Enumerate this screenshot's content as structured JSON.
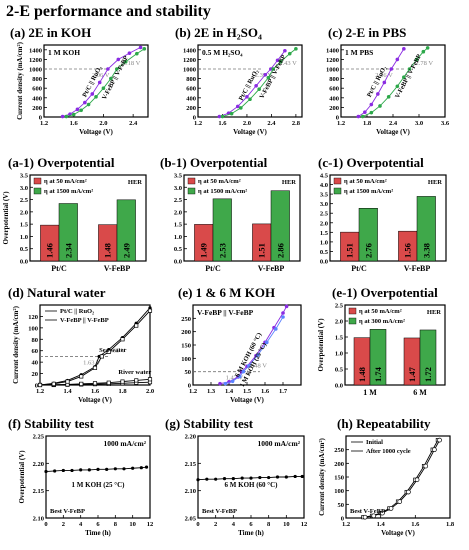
{
  "main_title": "2-E performance and stability",
  "colors": {
    "blue": "#1f2fd6",
    "blue_light": "#5b82ff",
    "purple": "#8a2be2",
    "green": "#2ca84a",
    "red_bar": "#d94a4a",
    "green_bar": "#3fa84a",
    "ref_line": "#777777",
    "ref_text": "#888888"
  },
  "chart_data": [
    {
      "id": "a",
      "type": "line",
      "title": "(a) 2E in KOH",
      "xlabel": "Voltage (V)",
      "ylabel": "Current density (mA/cm²)",
      "xlim": [
        1.2,
        2.6
      ],
      "ylim": [
        0,
        1500
      ],
      "xticks": [
        1.2,
        1.6,
        2.0,
        2.4
      ],
      "yticks": [
        0,
        200,
        400,
        600,
        800,
        1000,
        1200,
        1400
      ],
      "annotation": "1 M KOH",
      "ref_y": 1000,
      "ref_labels": [
        {
          "text": "2.06 V",
          "x": 2.06
        },
        {
          "text": "2.18 V",
          "x": 2.18
        }
      ],
      "series": [
        {
          "name": "Pt/C || RuO₂",
          "color": "purple",
          "x": [
            1.45,
            1.55,
            1.65,
            1.75,
            1.85,
            1.95,
            2.06,
            2.2,
            2.35,
            2.5
          ],
          "y": [
            10,
            60,
            160,
            300,
            480,
            720,
            1000,
            1200,
            1330,
            1450
          ]
        },
        {
          "name": "V-FeBP || V-FeBP",
          "color": "green",
          "x": [
            1.5,
            1.6,
            1.7,
            1.8,
            1.9,
            2.0,
            2.1,
            2.18,
            2.3,
            2.45,
            2.55
          ],
          "y": [
            10,
            50,
            140,
            260,
            420,
            600,
            800,
            1000,
            1150,
            1320,
            1420
          ]
        }
      ]
    },
    {
      "id": "b",
      "type": "line",
      "title": "(b) 2E in H₂SO₄",
      "xlabel": "Voltage (V)",
      "ylabel": "",
      "xlim": [
        1.2,
        2.9
      ],
      "ylim": [
        0,
        1500
      ],
      "xticks": [
        1.2,
        1.6,
        2.0,
        2.4,
        2.8
      ],
      "yticks": [
        0,
        200,
        400,
        600,
        800,
        1000,
        1200,
        1400
      ],
      "annotation": "0.5 M H₂SO₄",
      "ref_y": 1000,
      "ref_labels": [
        {
          "text": "2.39 V",
          "x": 2.39
        },
        {
          "text": "2.43 V",
          "x": 2.43
        }
      ],
      "series": [
        {
          "name": "Pt/C || RuO₂",
          "color": "purple",
          "x": [
            1.55,
            1.7,
            1.85,
            2.0,
            2.15,
            2.3,
            2.39,
            2.5,
            2.62
          ],
          "y": [
            10,
            80,
            220,
            420,
            650,
            880,
            1000,
            1180,
            1380
          ]
        },
        {
          "name": "V-FeBP || V-FeBP",
          "color": "green",
          "x": [
            1.6,
            1.75,
            1.9,
            2.05,
            2.2,
            2.35,
            2.43,
            2.55,
            2.7,
            2.8
          ],
          "y": [
            10,
            70,
            190,
            370,
            580,
            820,
            1000,
            1150,
            1320,
            1420
          ]
        }
      ]
    },
    {
      "id": "c",
      "type": "line",
      "title": "(c) 2-E in PBS",
      "xlabel": "Voltage (V)",
      "ylabel": "",
      "xlim": [
        1.2,
        3.6
      ],
      "ylim": [
        0,
        1500
      ],
      "xticks": [
        1.2,
        1.8,
        2.4,
        3.0,
        3.6
      ],
      "yticks": [
        0,
        200,
        400,
        600,
        800,
        1000,
        1200,
        1400
      ],
      "annotation": "1 M PBS",
      "ref_y": 1000,
      "ref_labels": [
        {
          "text": "2.36 V",
          "x": 2.36
        },
        {
          "text": "2.78 V",
          "x": 2.78
        }
      ],
      "series": [
        {
          "name": "Pt/C || RuO₂",
          "color": "purple",
          "x": [
            1.6,
            1.75,
            1.9,
            2.05,
            2.2,
            2.36,
            2.5,
            2.65
          ],
          "y": [
            10,
            100,
            260,
            480,
            720,
            1000,
            1200,
            1420
          ]
        },
        {
          "name": "V-FeBP || V-FeBP",
          "color": "green",
          "x": [
            1.7,
            1.9,
            2.1,
            2.3,
            2.5,
            2.65,
            2.78,
            2.95,
            3.1,
            3.2
          ],
          "y": [
            10,
            90,
            230,
            420,
            640,
            830,
            1000,
            1200,
            1360,
            1440
          ]
        }
      ]
    },
    {
      "id": "a1",
      "type": "bar",
      "title": "(a-1) Overpotential",
      "ylabel": "Overpotential (V)",
      "ylim": [
        0,
        3.5
      ],
      "yticks": [
        0,
        0.5,
        1.0,
        1.5,
        2.0,
        2.5,
        3.0,
        3.5
      ],
      "categories": [
        "Pt/C",
        "V-FeBP"
      ],
      "tag": "HER",
      "series": [
        {
          "name": "η at 50 mA/cm²",
          "color": "red_bar",
          "values": [
            1.46,
            1.48
          ]
        },
        {
          "name": "η at 1500 mA/cm²",
          "color": "green_bar",
          "values": [
            2.34,
            2.49
          ]
        }
      ]
    },
    {
      "id": "b1",
      "type": "bar",
      "title": "(b-1) Overpotential",
      "ylabel": "",
      "ylim": [
        0,
        3.5
      ],
      "yticks": [
        0,
        0.5,
        1.0,
        1.5,
        2.0,
        2.5,
        3.0,
        3.5
      ],
      "categories": [
        "Pt/C",
        "V-FeBP"
      ],
      "tag": "HER",
      "series": [
        {
          "name": "η at 50 mA/cm²",
          "color": "red_bar",
          "values": [
            1.49,
            1.51
          ]
        },
        {
          "name": "η at 1500 mA/cm²",
          "color": "green_bar",
          "values": [
            2.53,
            2.86
          ]
        }
      ]
    },
    {
      "id": "c1",
      "type": "bar",
      "title": "(c-1) Overpotential",
      "ylabel": "",
      "ylim": [
        0,
        4.5
      ],
      "yticks": [
        0,
        0.5,
        1.0,
        1.5,
        2.0,
        2.5,
        3.0,
        3.5,
        4.0,
        4.5
      ],
      "categories": [
        "Pt/C",
        "V-FeBP"
      ],
      "tag": "HER",
      "series": [
        {
          "name": "η at 50 mA/cm²",
          "color": "red_bar",
          "values": [
            1.51,
            1.56
          ]
        },
        {
          "name": "η at 1500 mA/cm²",
          "color": "green_bar",
          "values": [
            2.76,
            3.38
          ]
        }
      ]
    },
    {
      "id": "d",
      "type": "line",
      "title": "(d) Natural water",
      "xlabel": "Voltage (V)",
      "ylabel": "Current density (mA/cm²)",
      "xlim": [
        1.2,
        2.0
      ],
      "ylim": [
        0,
        140
      ],
      "xticks": [
        1.2,
        1.4,
        1.6,
        1.8,
        2.0
      ],
      "yticks": [
        0,
        20,
        40,
        60,
        80,
        100,
        120
      ],
      "ref_y": 50,
      "ref_labels": [
        {
          "text": "1.63 V",
          "x": 1.63
        },
        {
          "text": "1.65 V",
          "x": 1.65
        }
      ],
      "annotations": [
        {
          "text": "Sea water",
          "x": 1.63,
          "y": 58
        },
        {
          "text": "River water",
          "x": 1.77,
          "y": 19
        }
      ],
      "series": [
        {
          "name": "Pt/C || RuO₂",
          "color": "black_open",
          "x": [
            1.2,
            1.3,
            1.4,
            1.5,
            1.6,
            1.7,
            1.8,
            1.9,
            2.0
          ],
          "y": [
            0,
            0,
            0.5,
            1,
            1.5,
            2,
            3,
            4,
            5
          ]
        },
        {
          "name": "V-FeBP || V-FeBP",
          "color": "black_open",
          "x": [
            1.2,
            1.3,
            1.4,
            1.5,
            1.6,
            1.7,
            1.8,
            1.9,
            2.0
          ],
          "y": [
            0,
            0.5,
            1,
            2,
            3,
            4,
            6,
            8,
            10
          ]
        },
        {
          "name": "",
          "color": "black_filled",
          "x": [
            1.2,
            1.3,
            1.4,
            1.5,
            1.6,
            1.63,
            1.7,
            1.8,
            1.9,
            2.0
          ],
          "y": [
            0,
            3,
            8,
            18,
            32,
            50,
            62,
            83,
            108,
            135
          ]
        },
        {
          "name": "",
          "color": "black_open",
          "x": [
            1.2,
            1.3,
            1.4,
            1.5,
            1.6,
            1.65,
            1.7,
            1.8,
            1.9,
            2.0
          ],
          "y": [
            0,
            2,
            6,
            15,
            30,
            50,
            58,
            80,
            104,
            130
          ]
        }
      ]
    },
    {
      "id": "e",
      "type": "line",
      "title": "(e) 1 & 6 M KOH",
      "xlabel": "Voltage (V)",
      "ylabel": "",
      "xlim": [
        1.2,
        1.8
      ],
      "ylim": [
        0,
        300
      ],
      "xticks": [
        1.2,
        1.3,
        1.4,
        1.5,
        1.6,
        1.7
      ],
      "yticks": [
        0,
        50,
        100,
        150,
        200,
        250
      ],
      "annotation": "V-FeBP || V-FeBP",
      "ref_y": 50,
      "ref_labels": [
        {
          "text": "1.47 V",
          "x": 1.47
        },
        {
          "text": "1.48 V",
          "x": 1.48
        }
      ],
      "series": [
        {
          "name": "6 M KOH (60 °C)",
          "color": "purple",
          "x": [
            1.35,
            1.4,
            1.45,
            1.47,
            1.5,
            1.55,
            1.6,
            1.65,
            1.7,
            1.72
          ],
          "y": [
            5,
            12,
            30,
            50,
            70,
            110,
            160,
            215,
            270,
            295
          ]
        },
        {
          "name": "1 M KOH (25 °C)",
          "color": "blue_light",
          "x": [
            1.38,
            1.42,
            1.46,
            1.48,
            1.51,
            1.56,
            1.61,
            1.66,
            1.7
          ],
          "y": [
            5,
            14,
            32,
            50,
            72,
            112,
            160,
            210,
            255
          ]
        }
      ]
    },
    {
      "id": "e1",
      "type": "bar",
      "title": "(e-1) Overpotential",
      "ylabel": "Overpotential (V)",
      "ylim": [
        0,
        2.5
      ],
      "yticks": [
        0,
        0.5,
        1.0,
        1.5,
        2.0,
        2.5
      ],
      "categories": [
        "1 M",
        "6 M"
      ],
      "tag": "HER",
      "series": [
        {
          "name": "η at 50 mA/cm²",
          "color": "red_bar",
          "values": [
            1.48,
            1.47
          ]
        },
        {
          "name": "η at 300 mA/cm²",
          "color": "green_bar",
          "values": [
            1.74,
            1.72
          ]
        }
      ]
    },
    {
      "id": "f",
      "type": "line",
      "title": "(f) Stability test",
      "xlabel": "Time (h)",
      "ylabel": "Overpotential (V)",
      "xlim": [
        0,
        12
      ],
      "ylim": [
        2.1,
        2.25
      ],
      "xticks": [
        0,
        2,
        4,
        6,
        8,
        10,
        12
      ],
      "yticks": [
        2.1,
        2.15,
        2.2,
        2.25
      ],
      "annotation": "1000 mA/cm²",
      "note": "1 M KOH (25 °C)",
      "footer": "Best V-FeBP",
      "series": [
        {
          "name": "",
          "color": "black_filled",
          "x": [
            0,
            1,
            2,
            3,
            4,
            5,
            6,
            7,
            8,
            9,
            10,
            11,
            11.6
          ],
          "y": [
            2.185,
            2.186,
            2.187,
            2.187,
            2.188,
            2.188,
            2.189,
            2.189,
            2.19,
            2.19,
            2.191,
            2.192,
            2.193
          ]
        }
      ]
    },
    {
      "id": "g",
      "type": "line",
      "title": "(g) Stability test",
      "xlabel": "Time (h)",
      "ylabel": "",
      "xlim": [
        0,
        12
      ],
      "ylim": [
        2.05,
        2.2
      ],
      "xticks": [
        0,
        2,
        4,
        6,
        8,
        10,
        12
      ],
      "yticks": [
        2.05,
        2.1,
        2.15,
        2.2
      ],
      "annotation": "1000 mA/cm²",
      "note": "6 M KOH (60 °C)",
      "footer": "Best V-FeBP",
      "series": [
        {
          "name": "",
          "color": "black_filled",
          "x": [
            0,
            1,
            2,
            3,
            4,
            5,
            6,
            7,
            8,
            9,
            10,
            11,
            11.8
          ],
          "y": [
            2.12,
            2.121,
            2.121,
            2.122,
            2.122,
            2.123,
            2.123,
            2.124,
            2.124,
            2.125,
            2.125,
            2.126,
            2.126
          ]
        }
      ]
    },
    {
      "id": "h",
      "type": "line",
      "title": "(h) Repeatability",
      "xlabel": "Voltage (V)",
      "ylabel": "Current density (mA/cm²)",
      "xlim": [
        1.2,
        1.8
      ],
      "ylim": [
        0,
        300
      ],
      "xticks": [
        1.2,
        1.4,
        1.6,
        1.8
      ],
      "yticks": [
        0,
        50,
        100,
        150,
        200,
        250
      ],
      "footer": "Best V-FeBP",
      "series": [
        {
          "name": "Initial",
          "color": "black_open",
          "x": [
            1.3,
            1.35,
            1.4,
            1.45,
            1.5,
            1.55,
            1.6,
            1.65,
            1.7,
            1.73
          ],
          "y": [
            3,
            8,
            18,
            35,
            60,
            95,
            140,
            190,
            250,
            285
          ]
        },
        {
          "name": "After 1000 cycle",
          "color": "black_open_circle",
          "x": [
            1.31,
            1.36,
            1.41,
            1.46,
            1.51,
            1.56,
            1.61,
            1.66,
            1.71,
            1.74
          ],
          "y": [
            3,
            8,
            18,
            35,
            60,
            95,
            140,
            190,
            250,
            285
          ]
        }
      ]
    }
  ]
}
